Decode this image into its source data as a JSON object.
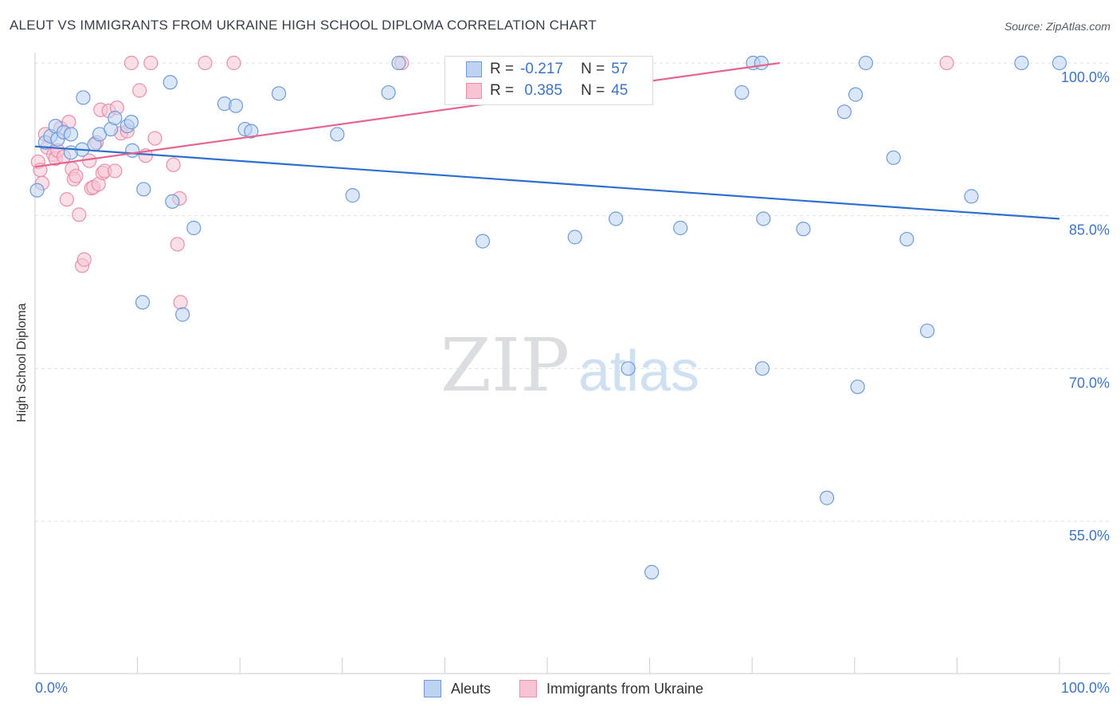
{
  "title": "ALEUT VS IMMIGRANTS FROM UKRAINE HIGH SCHOOL DIPLOMA CORRELATION CHART",
  "source": "Source: ZipAtlas.com",
  "watermark": {
    "zip": "ZIP",
    "atlas": "atlas"
  },
  "legend": {
    "rows": [
      {
        "r_label": "R =",
        "r_value": "-0.217",
        "n_label": "N =",
        "n_value": "57"
      },
      {
        "r_label": "R =",
        "r_value": " 0.385",
        "n_label": "N =",
        "n_value": "45"
      }
    ]
  },
  "bottom_legend": [
    "Aleuts",
    "Immigrants from Ukraine"
  ],
  "colors": {
    "blue_fill": "#bcd3f2",
    "blue_stroke": "#6e9bd9",
    "blue_line": "#2f6fcf",
    "pink_fill": "#f7c4d3",
    "pink_stroke": "#e98fab",
    "pink_line": "#e4668f",
    "tick_text": "#3d74c6",
    "grid": "#dde0e6"
  },
  "chart_data": {
    "type": "scatter",
    "title": "ALEUT VS IMMIGRANTS FROM UKRAINE HIGH SCHOOL DIPLOMA CORRELATION CHART",
    "xlabel": "",
    "ylabel": "High School Diploma",
    "xlim": [
      0,
      100
    ],
    "ylim": [
      40,
      102
    ],
    "x_tick_labels": [
      "0.0%",
      "100.0%"
    ],
    "y_ticks": [
      55,
      70,
      85,
      100
    ],
    "y_tick_labels": [
      "55.0%",
      "70.0%",
      "85.0%",
      "100.0%"
    ],
    "grid": true,
    "series": [
      {
        "name": "Aleuts",
        "points": [
          [
            0.2,
            87.5
          ],
          [
            1.0,
            92.2
          ],
          [
            1.5,
            92.8
          ],
          [
            2.0,
            93.8
          ],
          [
            2.2,
            92.5
          ],
          [
            2.8,
            93.2
          ],
          [
            3.5,
            93.0
          ],
          [
            3.5,
            91.2
          ],
          [
            4.6,
            91.5
          ],
          [
            4.7,
            96.6
          ],
          [
            5.8,
            92.0
          ],
          [
            6.3,
            93.0
          ],
          [
            7.4,
            93.5
          ],
          [
            7.8,
            94.6
          ],
          [
            9.0,
            93.8
          ],
          [
            9.4,
            94.2
          ],
          [
            9.5,
            91.4
          ],
          [
            10.6,
            87.6
          ],
          [
            10.5,
            76.5
          ],
          [
            13.2,
            98.1
          ],
          [
            13.4,
            86.4
          ],
          [
            14.4,
            75.3
          ],
          [
            15.5,
            83.8
          ],
          [
            18.5,
            96.0
          ],
          [
            19.6,
            95.8
          ],
          [
            20.5,
            93.5
          ],
          [
            21.1,
            93.3
          ],
          [
            23.8,
            97.0
          ],
          [
            29.5,
            93.0
          ],
          [
            31.0,
            87.0
          ],
          [
            34.5,
            97.1
          ],
          [
            35.5,
            100.0
          ],
          [
            43.7,
            82.5
          ],
          [
            47.5,
            100.0
          ],
          [
            52.7,
            82.9
          ],
          [
            55.7,
            100.0
          ],
          [
            56.7,
            84.7
          ],
          [
            57.9,
            70.0
          ],
          [
            60.2,
            50.0
          ],
          [
            63.0,
            83.8
          ],
          [
            69.0,
            97.1
          ],
          [
            70.1,
            100.0
          ],
          [
            70.9,
            100.0
          ],
          [
            71.1,
            84.7
          ],
          [
            71.0,
            70.0
          ],
          [
            75.0,
            83.7
          ],
          [
            77.3,
            57.3
          ],
          [
            79.0,
            95.2
          ],
          [
            80.1,
            96.9
          ],
          [
            80.3,
            68.2
          ],
          [
            81.1,
            100.0
          ],
          [
            83.8,
            90.7
          ],
          [
            85.1,
            82.7
          ],
          [
            87.1,
            73.7
          ],
          [
            91.4,
            86.9
          ],
          [
            96.3,
            100.0
          ],
          [
            100.0,
            100.0
          ]
        ]
      },
      {
        "name": "Immigrants from Ukraine",
        "points": [
          [
            0.3,
            90.3
          ],
          [
            0.5,
            89.5
          ],
          [
            0.7,
            88.2
          ],
          [
            1.0,
            93.0
          ],
          [
            1.2,
            91.7
          ],
          [
            1.8,
            91.0
          ],
          [
            2.0,
            90.6
          ],
          [
            2.2,
            91.4
          ],
          [
            2.5,
            93.6
          ],
          [
            2.8,
            90.8
          ],
          [
            3.1,
            86.6
          ],
          [
            3.3,
            94.2
          ],
          [
            3.6,
            89.6
          ],
          [
            3.8,
            88.6
          ],
          [
            4.0,
            88.9
          ],
          [
            4.3,
            85.1
          ],
          [
            4.6,
            80.1
          ],
          [
            4.8,
            80.7
          ],
          [
            5.3,
            90.4
          ],
          [
            5.5,
            87.7
          ],
          [
            5.7,
            87.8
          ],
          [
            6.0,
            92.2
          ],
          [
            6.2,
            88.1
          ],
          [
            6.4,
            95.4
          ],
          [
            6.6,
            89.2
          ],
          [
            6.8,
            89.4
          ],
          [
            7.2,
            95.3
          ],
          [
            7.8,
            89.4
          ],
          [
            8.0,
            95.6
          ],
          [
            8.4,
            93.1
          ],
          [
            9.0,
            93.3
          ],
          [
            9.4,
            100.0
          ],
          [
            10.2,
            97.3
          ],
          [
            10.8,
            90.9
          ],
          [
            11.3,
            100.0
          ],
          [
            11.7,
            92.6
          ],
          [
            13.5,
            90.0
          ],
          [
            13.9,
            82.2
          ],
          [
            14.1,
            86.7
          ],
          [
            14.2,
            76.5
          ],
          [
            16.6,
            100.0
          ],
          [
            19.4,
            100.0
          ],
          [
            35.8,
            100.0
          ],
          [
            47.8,
            100.0
          ],
          [
            89.0,
            100.0
          ]
        ]
      }
    ],
    "trend_lines": [
      {
        "series": "Aleuts",
        "from": [
          0,
          91.8
        ],
        "to": [
          100,
          84.7
        ]
      },
      {
        "series": "Immigrants from Ukraine",
        "from": [
          0,
          89.8
        ],
        "to": [
          72.7,
          100.0
        ]
      }
    ]
  }
}
